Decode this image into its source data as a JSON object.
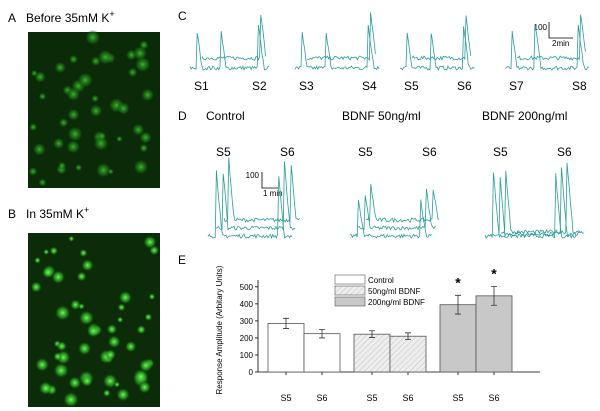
{
  "panels": {
    "a": {
      "letter": "A",
      "label": "Before 35mM K",
      "sup": "+"
    },
    "b": {
      "letter": "B",
      "label": "In 35mM K",
      "sup": "+"
    },
    "c": {
      "letter": "C",
      "stim": [
        "S1",
        "S2",
        "S3",
        "S4",
        "S5",
        "S6",
        "S7",
        "S8"
      ],
      "scale_y": "100",
      "scale_x": "2min"
    },
    "d": {
      "letter": "D",
      "groups": [
        "Control",
        "BDNF 50ng/ml",
        "BDNF 200ng/ml"
      ],
      "stim": [
        "S5",
        "S6",
        "S5",
        "S6",
        "S5",
        "S6"
      ],
      "scale_y": "100",
      "scale_x": "1 min"
    },
    "e": {
      "letter": "E"
    }
  },
  "chart_data": {
    "type": "bar",
    "y_label": "Response Amplitude (Arbitary Units)",
    "categories": [
      "S5",
      "S6",
      "S5",
      "S6",
      "S5",
      "S6"
    ],
    "series": [
      {
        "name": "Control",
        "color": "#ffffff",
        "values": [
          285,
          225,
          null,
          null,
          null,
          null
        ],
        "errors": [
          30,
          25,
          null,
          null,
          null,
          null
        ]
      },
      {
        "name": "50ng/ml BDNF",
        "color": "#e6e6e6",
        "hatch": true,
        "values": [
          null,
          null,
          222,
          210,
          null,
          null
        ],
        "errors": [
          null,
          null,
          20,
          20,
          null,
          null
        ]
      },
      {
        "name": "200ng/ml BDNF",
        "color": "#c8c8c8",
        "values": [
          null,
          null,
          null,
          null,
          395,
          447
        ],
        "errors": [
          null,
          null,
          null,
          null,
          55,
          55
        ]
      }
    ],
    "annotations": [
      null,
      null,
      null,
      null,
      "*",
      "*"
    ],
    "ylim": [
      0,
      540
    ],
    "yticks": [
      0,
      100,
      200,
      300,
      400,
      500
    ],
    "legend": "top"
  }
}
